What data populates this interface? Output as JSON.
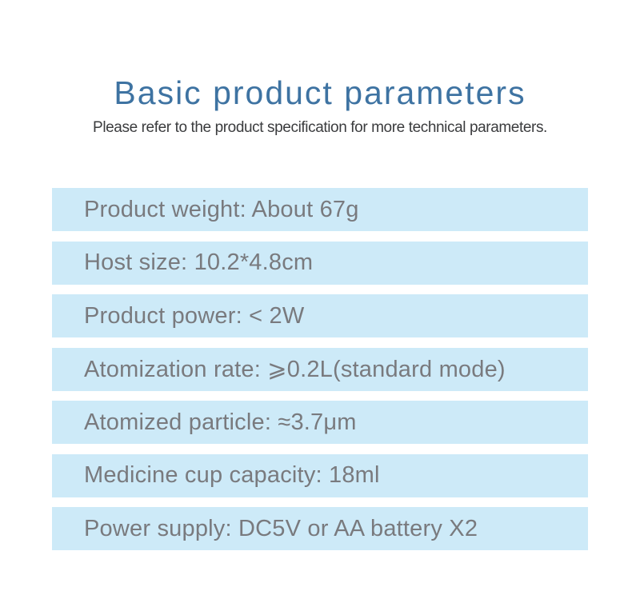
{
  "header": {
    "title": "Basic product parameters",
    "subtitle": "Please refer to the product specification for more technical parameters."
  },
  "spec_rows": [
    {
      "text": "Product weight: About 67g"
    },
    {
      "text": "Host size: 10.2*4.8cm"
    },
    {
      "text": "Product power: < 2W"
    },
    {
      "text": "Atomization rate: ⩾0.2L(standard mode)"
    },
    {
      "text": "Atomized particle: ≈3.7μm"
    },
    {
      "text": "Medicine cup capacity: 18ml"
    },
    {
      "text": "Power supply: DC5V or AA battery X2"
    }
  ],
  "colors": {
    "title_blue": "#3e73a2",
    "subtitle_gray": "#3b3c3e",
    "row_background_blue": "#cdeaf8",
    "row_text_gray": "#797a7e",
    "page_background": "#ffffff"
  }
}
